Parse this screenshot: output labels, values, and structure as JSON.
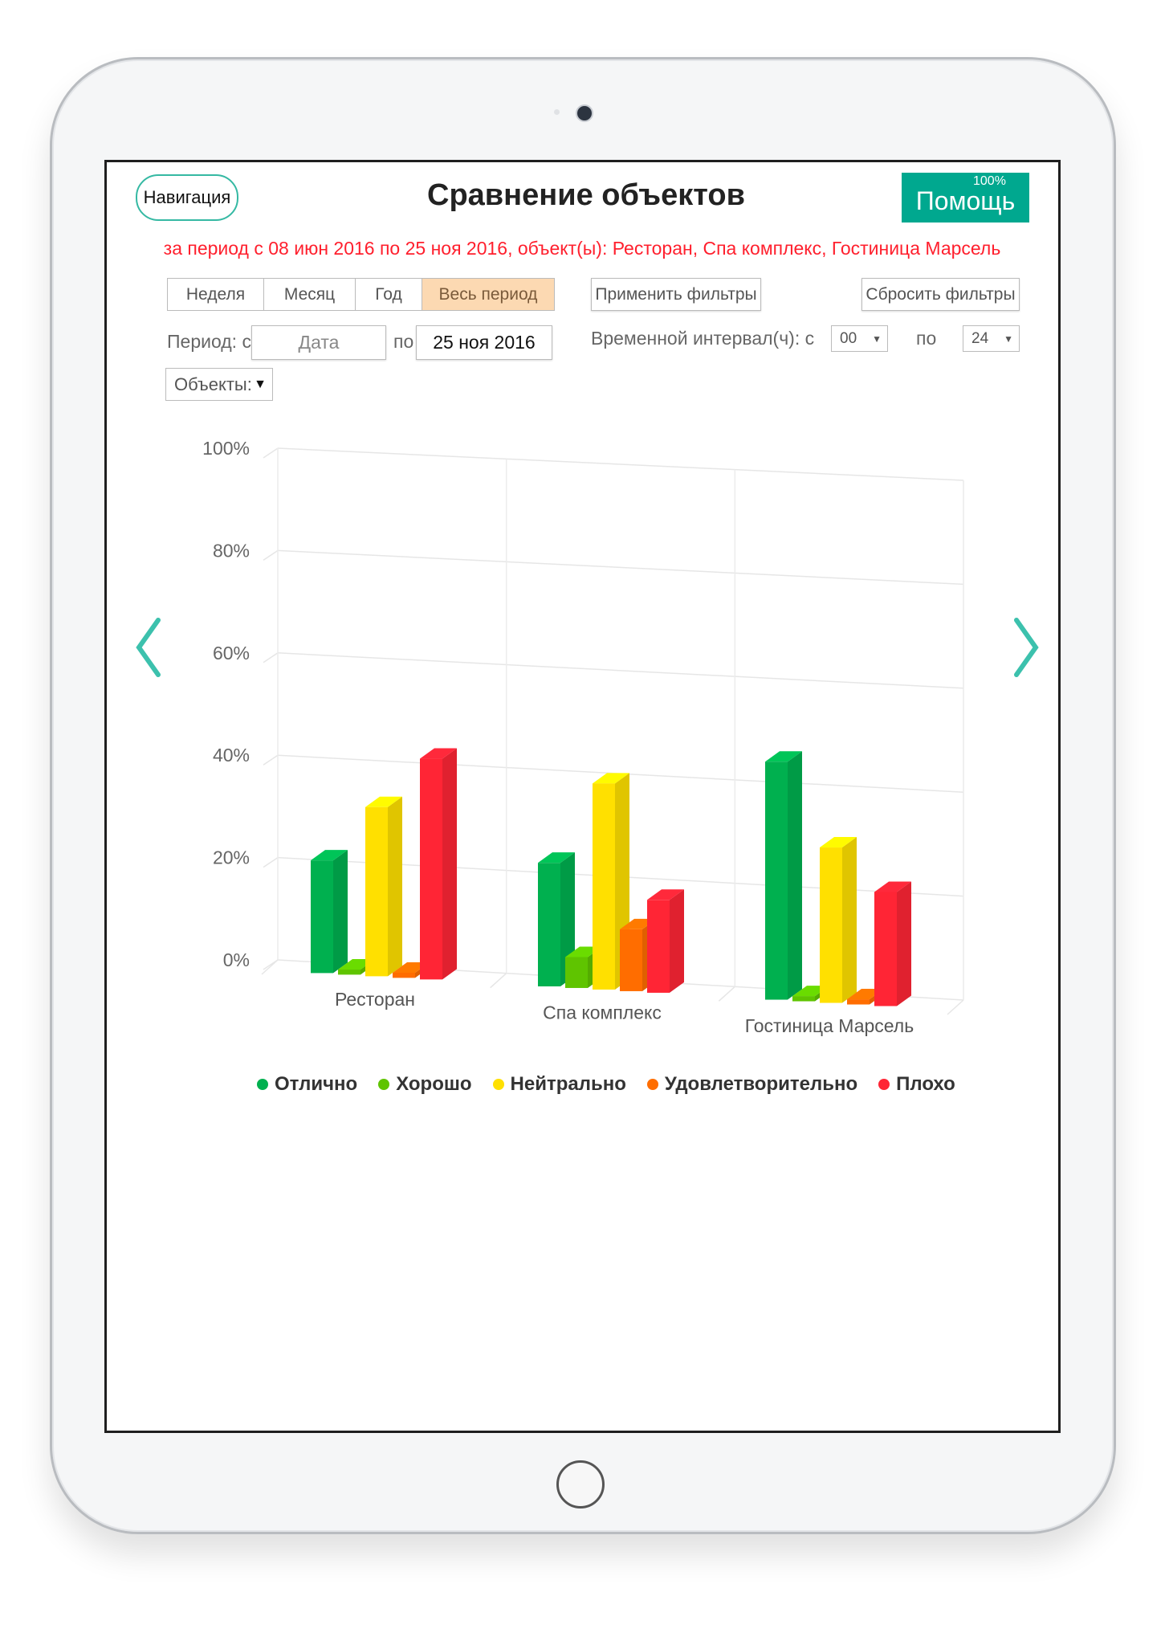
{
  "header": {
    "nav_label": "Навигация",
    "title": "Сравнение объектов",
    "help_label": "Помощь",
    "battery": "100%"
  },
  "subtitle": "за период с 08 июн 2016 по 25 ноя 2016, объект(ы): Ресторан, Спа комплекс, Гостиница Марсель",
  "period_tabs": [
    {
      "label": "Неделя"
    },
    {
      "label": "Месяц"
    },
    {
      "label": "Год"
    },
    {
      "label": "Весь период",
      "active": true
    }
  ],
  "filters": {
    "apply_label": "Применить фильтры",
    "reset_label": "Сбросить фильтры",
    "period_label": "Период: с",
    "from_placeholder": "Дата",
    "to_label": "по",
    "to_value": "25 ноя 2016",
    "interval_label": "Временной интервал(ч): с",
    "interval_from": "00",
    "interval_to_label": "по",
    "interval_to": "24",
    "objects_label": "Объекты:"
  },
  "colors": {
    "accent": "#00a88f",
    "subtitle": "#ff1f2d",
    "active_tab": "#fcd9b2"
  },
  "chart_data": {
    "type": "bar",
    "style": "3d-column",
    "categories": [
      "Ресторан",
      "Спа комплекс",
      "Гостиница Марсель"
    ],
    "yticks": [
      "0%",
      "20%",
      "40%",
      "60%",
      "80%",
      "100%"
    ],
    "ylim": [
      0,
      100
    ],
    "grid": true,
    "legend_position": "bottom",
    "series": [
      {
        "name": "Отлично",
        "color": "#00b04f",
        "values": [
          22,
          24,
          46
        ]
      },
      {
        "name": "Хорошо",
        "color": "#5fc400",
        "values": [
          1,
          6,
          1
        ]
      },
      {
        "name": "Нейтрально",
        "color": "#ffe000",
        "values": [
          33,
          40,
          30
        ]
      },
      {
        "name": "Удовлетворительно",
        "color": "#ff6d00",
        "values": [
          1,
          12,
          1
        ]
      },
      {
        "name": "Плохо",
        "color": "#ff2535",
        "values": [
          43,
          18,
          22
        ]
      }
    ]
  }
}
